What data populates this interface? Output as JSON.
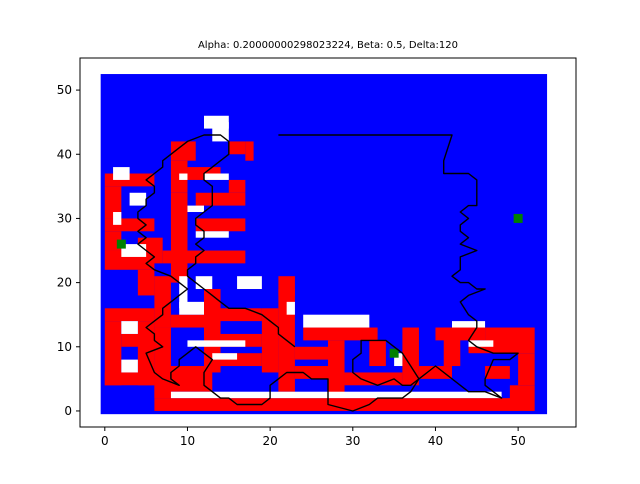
{
  "chart_data": {
    "type": "scatter",
    "title": "Alpha: 0.20000000298023224, Beta: 0.5, Delta:120",
    "xlabel": "",
    "ylabel": "",
    "xlim": [
      -3,
      57
    ],
    "ylim": [
      -2.5,
      55
    ],
    "x_ticks": [
      0,
      10,
      20,
      30,
      40,
      50
    ],
    "y_ticks": [
      0,
      10,
      20,
      30,
      40,
      50
    ],
    "grid": false,
    "legend": "none",
    "colors": {
      "background": "#0000ff",
      "wall": "#ff0000",
      "free": "#ffffff",
      "path": "#000000",
      "goal": "#008000"
    },
    "map_extent": {
      "x": [
        -0.5,
        53.5
      ],
      "y": [
        -0.5,
        52.5
      ]
    },
    "red_cells": [
      [
        8,
        39,
        11,
        42
      ],
      [
        15,
        40,
        17,
        42
      ],
      [
        17,
        39,
        18,
        42
      ],
      [
        8,
        34,
        10,
        39
      ],
      [
        8,
        20,
        10,
        34
      ],
      [
        10,
        36,
        14,
        38
      ],
      [
        11,
        32,
        17,
        34
      ],
      [
        11,
        28,
        17,
        30
      ],
      [
        15,
        34,
        17,
        36
      ],
      [
        0,
        35,
        6,
        37
      ],
      [
        0,
        30,
        2,
        35
      ],
      [
        0,
        28,
        6,
        30
      ],
      [
        0,
        25,
        2,
        28
      ],
      [
        0,
        22,
        6,
        25
      ],
      [
        4,
        23,
        7,
        27
      ],
      [
        4,
        18,
        6,
        22
      ],
      [
        0,
        14,
        6,
        16
      ],
      [
        0,
        4,
        2,
        14
      ],
      [
        0,
        4,
        6,
        6
      ],
      [
        4,
        4,
        6,
        14
      ],
      [
        2,
        10,
        6,
        12
      ],
      [
        6,
        13,
        8,
        21
      ],
      [
        6,
        2,
        8,
        13
      ],
      [
        8,
        3,
        13,
        7
      ],
      [
        8,
        13,
        13,
        15
      ],
      [
        12,
        6,
        14,
        19
      ],
      [
        13,
        14,
        19,
        16
      ],
      [
        14,
        7,
        19,
        9
      ],
      [
        14,
        10,
        19,
        12
      ],
      [
        19,
        6,
        21,
        16
      ],
      [
        21,
        3,
        23,
        19
      ],
      [
        23,
        5,
        28,
        7
      ],
      [
        23,
        8,
        28,
        10
      ],
      [
        24,
        11,
        33,
        13
      ],
      [
        27,
        2,
        29,
        11
      ],
      [
        29,
        4,
        36,
        6
      ],
      [
        32,
        7,
        34,
        11
      ],
      [
        36,
        4,
        38,
        13
      ],
      [
        38,
        5,
        42,
        7
      ],
      [
        41,
        7,
        43,
        13
      ],
      [
        40,
        11,
        46,
        13
      ],
      [
        44,
        9,
        46,
        11
      ],
      [
        46,
        5,
        49,
        7
      ],
      [
        46,
        9,
        52,
        13
      ],
      [
        50,
        4,
        52,
        9
      ],
      [
        49,
        0,
        52,
        4
      ],
      [
        6,
        0,
        50,
        2
      ],
      [
        6,
        2,
        8,
        4
      ],
      [
        7,
        23,
        17,
        25
      ],
      [
        21,
        18,
        23,
        21
      ]
    ],
    "white_cells": [
      [
        13,
        42,
        15,
        45
      ],
      [
        12,
        44,
        15,
        46
      ],
      [
        1,
        36,
        3,
        38
      ],
      [
        3,
        32,
        5,
        34
      ],
      [
        1,
        29,
        2,
        31
      ],
      [
        2,
        24,
        5,
        26
      ],
      [
        2,
        12,
        4,
        14
      ],
      [
        2,
        6,
        4,
        8
      ],
      [
        9,
        15,
        12,
        17
      ],
      [
        11,
        19,
        13,
        21
      ],
      [
        16,
        19,
        19,
        21
      ],
      [
        10,
        10,
        17,
        11
      ],
      [
        13,
        8,
        16,
        9
      ],
      [
        24,
        13,
        32,
        15
      ],
      [
        35,
        7,
        36,
        9
      ],
      [
        44,
        10,
        47,
        11
      ],
      [
        8,
        2,
        48,
        3
      ],
      [
        9,
        36,
        10,
        37
      ],
      [
        10,
        31,
        12,
        32
      ],
      [
        12,
        36,
        15,
        37
      ],
      [
        11,
        27,
        15,
        28
      ],
      [
        22,
        15,
        23,
        17
      ],
      [
        9,
        16,
        10,
        21
      ],
      [
        42,
        13,
        46,
        14
      ]
    ],
    "path": [
      [
        21,
        43
      ],
      [
        42,
        43
      ],
      [
        41,
        39
      ],
      [
        41,
        37
      ],
      [
        44,
        37
      ],
      [
        45,
        36
      ],
      [
        45,
        35
      ],
      [
        45,
        34
      ],
      [
        45,
        33
      ],
      [
        45,
        32
      ],
      [
        44,
        32
      ],
      [
        43,
        31
      ],
      [
        44,
        30
      ],
      [
        43,
        29
      ],
      [
        43,
        28
      ],
      [
        44,
        27
      ],
      [
        43,
        26
      ],
      [
        45,
        25
      ],
      [
        43,
        24
      ],
      [
        43,
        23
      ],
      [
        43,
        22
      ],
      [
        42,
        21
      ],
      [
        43,
        20
      ],
      [
        44,
        20
      ],
      [
        45,
        19
      ],
      [
        46,
        19
      ],
      [
        44,
        18
      ],
      [
        43,
        17
      ],
      [
        44,
        15
      ],
      [
        45,
        14
      ],
      [
        45,
        13
      ],
      [
        44,
        11
      ],
      [
        45,
        10
      ],
      [
        47,
        9
      ],
      [
        48,
        9
      ],
      [
        50,
        9
      ],
      [
        49,
        8
      ],
      [
        47,
        8
      ],
      [
        46,
        5
      ],
      [
        46,
        4
      ],
      [
        47,
        3
      ],
      [
        48,
        2
      ],
      [
        46,
        3
      ],
      [
        44,
        3
      ],
      [
        43,
        4
      ],
      [
        40,
        7
      ],
      [
        39,
        6
      ],
      [
        38,
        5
      ],
      [
        37,
        7
      ],
      [
        36,
        9
      ],
      [
        35,
        10
      ],
      [
        34,
        11
      ],
      [
        31,
        11
      ],
      [
        31,
        10
      ],
      [
        31,
        9
      ],
      [
        30,
        8
      ],
      [
        30,
        6
      ],
      [
        31,
        5
      ],
      [
        33,
        4
      ],
      [
        35,
        5
      ],
      [
        36,
        4
      ],
      [
        37,
        4
      ],
      [
        38,
        5
      ],
      [
        37,
        3
      ],
      [
        36,
        2
      ],
      [
        33,
        2
      ],
      [
        32,
        1
      ],
      [
        30,
        0
      ],
      [
        27,
        1
      ],
      [
        27,
        5
      ],
      [
        25,
        5
      ],
      [
        24,
        6
      ],
      [
        22,
        6
      ],
      [
        21,
        5
      ],
      [
        20,
        4
      ],
      [
        20,
        3
      ],
      [
        20,
        2
      ],
      [
        19,
        1
      ],
      [
        16,
        1
      ],
      [
        15,
        2
      ],
      [
        14,
        2
      ],
      [
        13,
        3
      ],
      [
        12,
        4
      ],
      [
        12,
        5
      ],
      [
        12,
        6
      ],
      [
        13,
        8
      ],
      [
        12,
        9
      ],
      [
        11,
        10
      ],
      [
        10,
        9
      ],
      [
        9,
        8
      ],
      [
        9,
        7
      ],
      [
        8,
        6
      ],
      [
        8,
        5
      ],
      [
        9,
        4
      ],
      [
        7,
        5
      ],
      [
        6,
        6
      ],
      [
        5,
        9
      ],
      [
        7,
        10
      ],
      [
        6,
        11
      ],
      [
        6,
        12
      ],
      [
        5,
        13
      ],
      [
        6,
        14
      ],
      [
        7,
        15
      ],
      [
        7,
        16
      ],
      [
        8,
        17
      ],
      [
        9,
        18
      ],
      [
        10,
        19
      ],
      [
        9,
        20
      ],
      [
        8,
        21
      ],
      [
        6,
        22
      ],
      [
        5,
        23
      ],
      [
        6,
        24
      ],
      [
        5,
        25
      ],
      [
        4,
        26
      ],
      [
        5,
        27
      ],
      [
        4,
        28
      ],
      [
        5,
        29
      ],
      [
        4,
        30
      ],
      [
        4,
        31
      ],
      [
        5,
        32
      ],
      [
        5,
        33
      ],
      [
        6,
        34
      ],
      [
        6,
        35
      ],
      [
        5,
        36
      ],
      [
        6,
        37
      ],
      [
        7,
        38
      ],
      [
        7,
        39
      ],
      [
        8,
        40
      ],
      [
        9,
        41
      ],
      [
        10,
        42
      ],
      [
        12,
        43
      ],
      [
        14,
        43
      ],
      [
        15,
        42
      ],
      [
        15,
        40
      ],
      [
        14,
        39
      ],
      [
        13,
        38
      ],
      [
        12,
        37
      ],
      [
        12,
        36
      ],
      [
        13,
        35
      ],
      [
        13,
        34
      ],
      [
        13,
        33
      ],
      [
        13,
        32
      ],
      [
        12,
        31
      ],
      [
        11,
        30
      ],
      [
        11,
        29
      ],
      [
        12,
        28
      ],
      [
        12,
        27
      ],
      [
        11,
        26
      ],
      [
        12,
        25
      ],
      [
        11,
        24
      ],
      [
        11,
        23
      ],
      [
        10,
        22
      ],
      [
        10,
        21
      ],
      [
        11,
        20
      ],
      [
        12,
        19
      ],
      [
        13,
        18
      ],
      [
        14,
        17
      ],
      [
        15,
        16
      ],
      [
        17,
        16
      ],
      [
        19,
        15
      ],
      [
        20,
        14
      ],
      [
        21,
        13
      ],
      [
        21,
        12
      ],
      [
        22,
        11
      ],
      [
        23,
        10
      ]
    ],
    "goals": [
      [
        2,
        26
      ],
      [
        35,
        9
      ],
      [
        50,
        30
      ]
    ]
  }
}
